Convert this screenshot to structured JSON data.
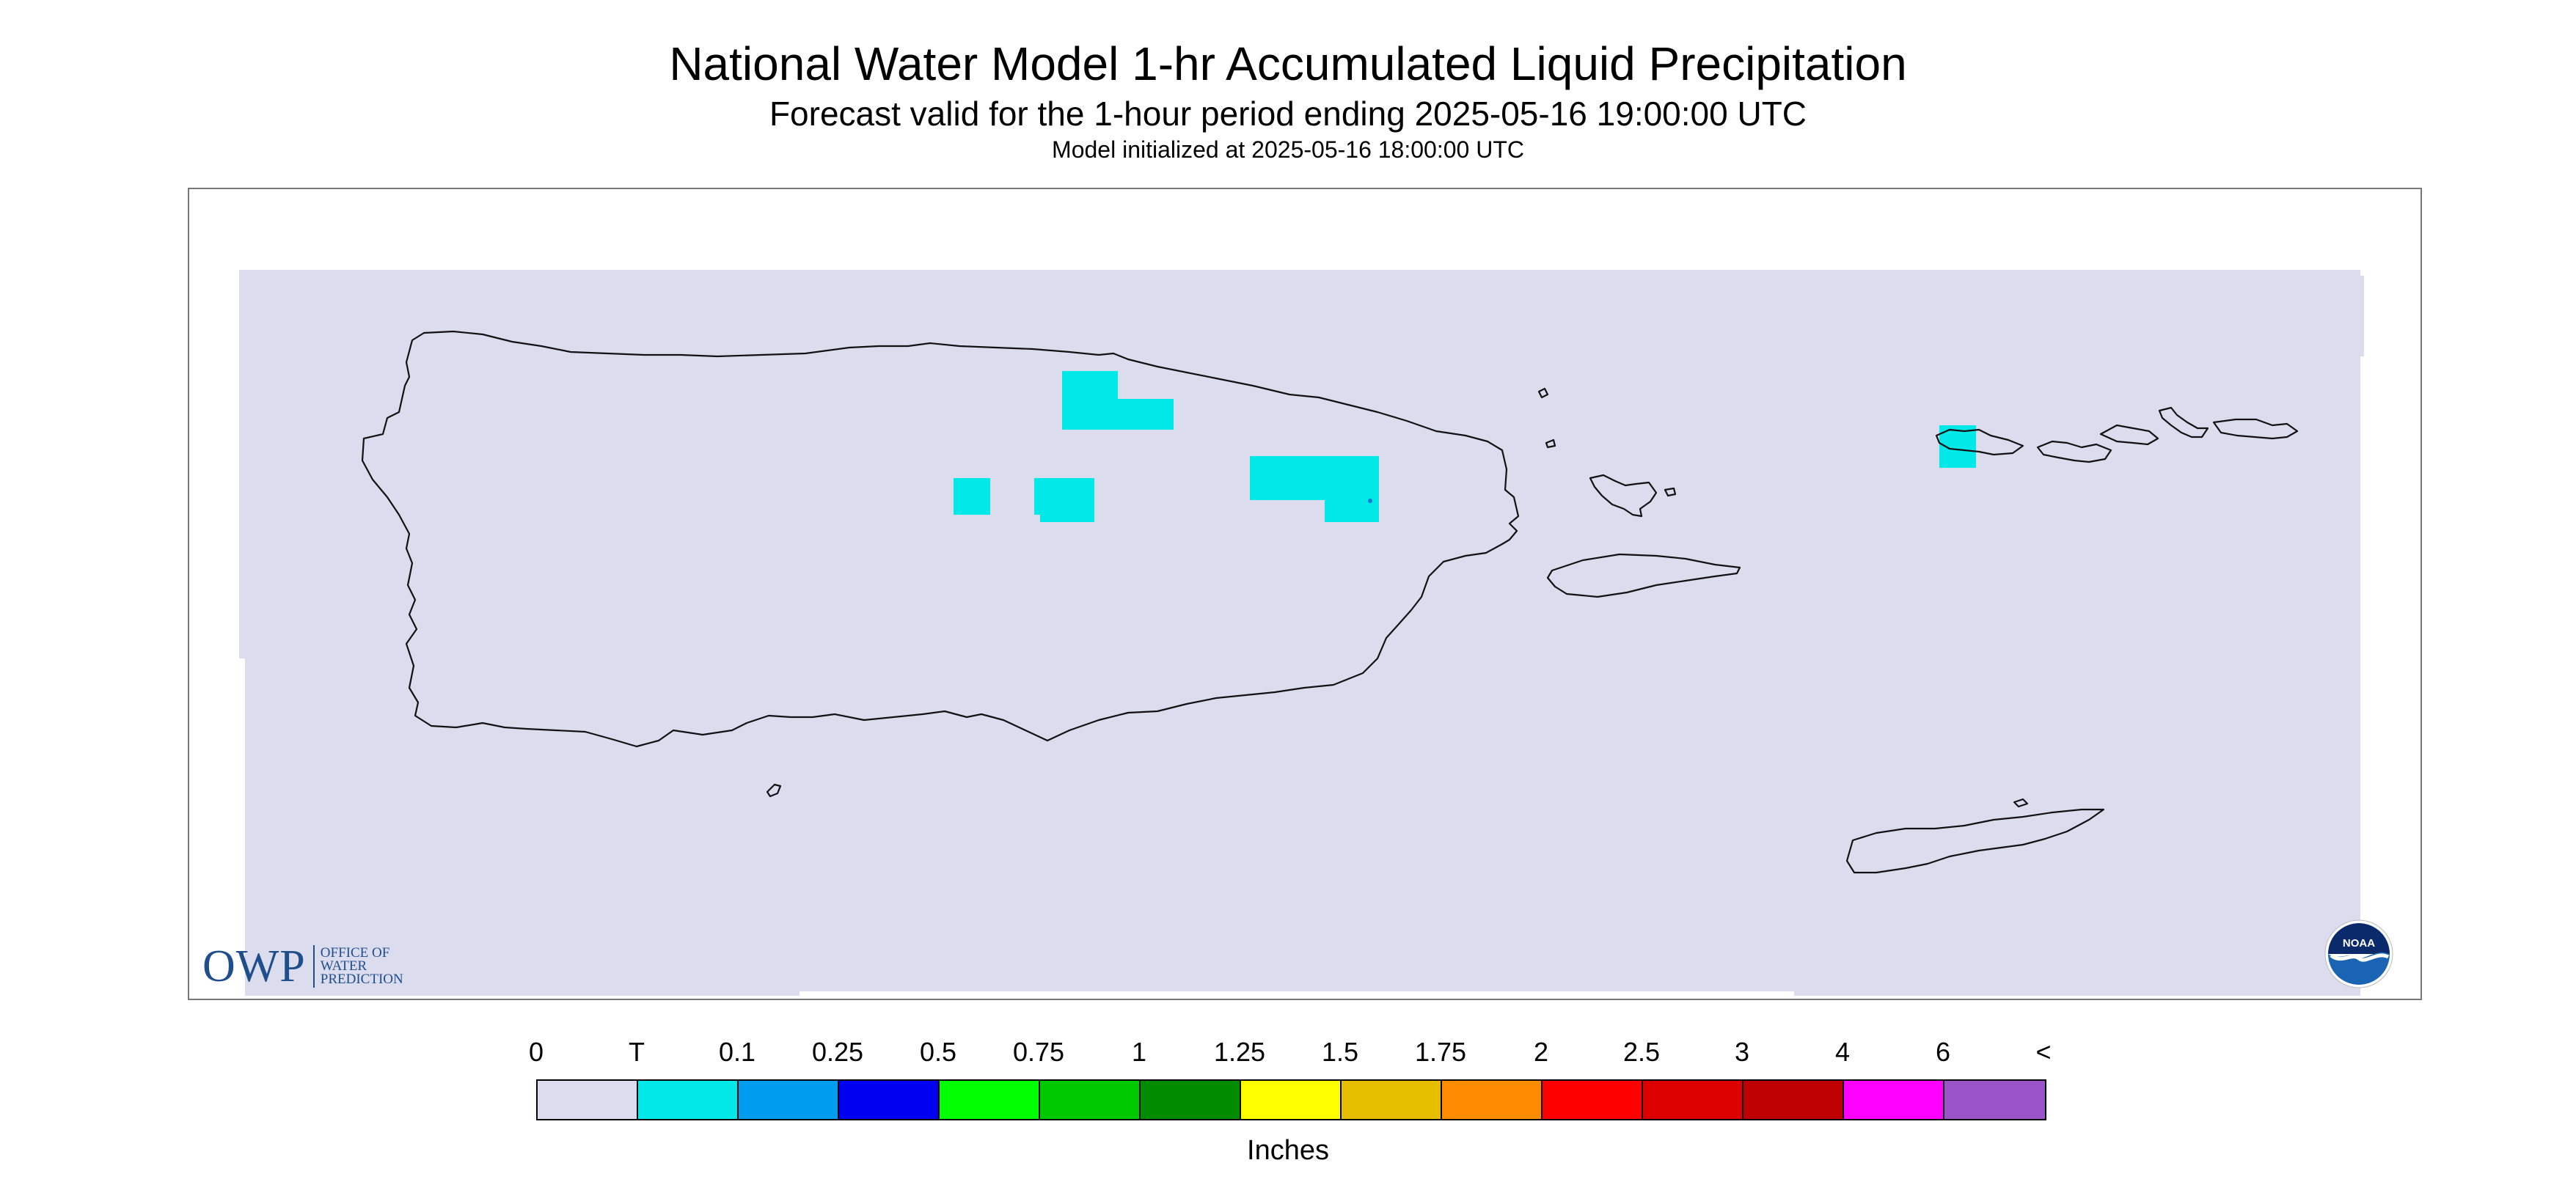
{
  "header": {
    "title": "National Water Model 1-hr Accumulated Liquid Precipitation",
    "subtitle": "Forecast valid for the 1-hour period ending 2025-05-16 19:00:00 UTC",
    "init_line": "Model initialized at 2025-05-16 18:00:00 UTC"
  },
  "logos": {
    "owp_mark": "OWP",
    "owp_text": "Office of\nWater\nPrediction",
    "noaa_text": "NOAA"
  },
  "legend": {
    "labels": [
      "0",
      "T",
      "0.1",
      "0.25",
      "0.5",
      "0.75",
      "1",
      "1.25",
      "1.5",
      "1.75",
      "2",
      "2.5",
      "3",
      "4",
      "6",
      "<"
    ],
    "colors": [
      "#dcdcef",
      "#00e8e8",
      "#009cf0",
      "#0000f0",
      "#00ff00",
      "#00c800",
      "#008c00",
      "#ffff00",
      "#e6be00",
      "#ff8c00",
      "#ff0000",
      "#dc0000",
      "#be0000",
      "#ff00ff",
      "#9955c9"
    ],
    "unit": "Inches"
  },
  "colors": {
    "no_precip": "#dcdcef",
    "trace": "#00e8e8",
    "coastline": "#111111",
    "owp_blue": "#1f4e8c",
    "noaa_blue": "#1a64b4"
  }
}
